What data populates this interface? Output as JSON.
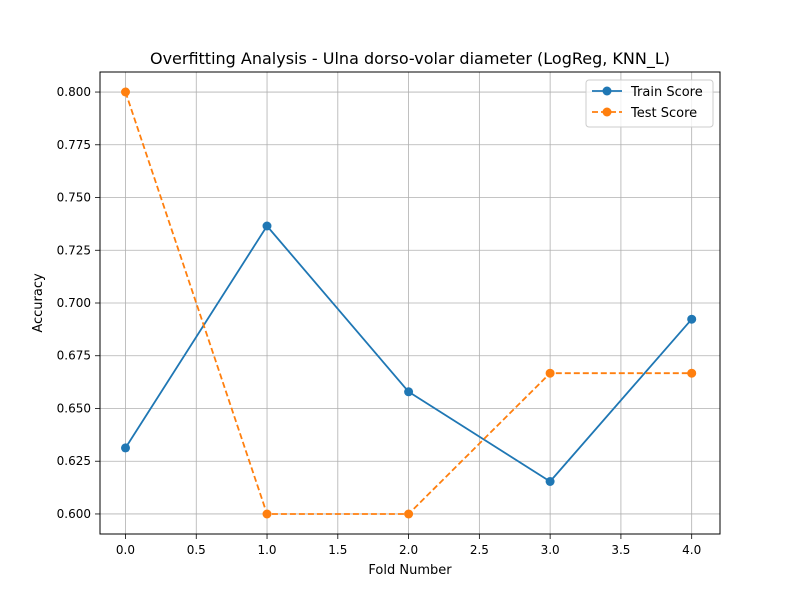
{
  "chart_data": {
    "type": "line",
    "title": "Overfitting Analysis - Ulna dorso-volar diameter (LogReg, KNN_L)",
    "xlabel": "Fold Number",
    "ylabel": "Accuracy",
    "xlim": [
      -0.18,
      4.2
    ],
    "ylim": [
      0.5905,
      0.8095
    ],
    "x_ticks": [
      0,
      0.5,
      1,
      1.5,
      2,
      2.5,
      3,
      3.5,
      4
    ],
    "x_tick_labels": [
      "0.0",
      "0.5",
      "1.0",
      "1.5",
      "2.0",
      "2.5",
      "3.0",
      "3.5",
      "4.0"
    ],
    "y_ticks": [
      0.6,
      0.625,
      0.65,
      0.675,
      0.7,
      0.725,
      0.75,
      0.775,
      0.8
    ],
    "y_tick_labels": [
      "0.600",
      "0.625",
      "0.650",
      "0.675",
      "0.700",
      "0.725",
      "0.750",
      "0.775",
      "0.800"
    ],
    "grid": true,
    "legend_position": "top-right",
    "x": [
      0,
      1,
      2,
      3,
      4
    ],
    "series": [
      {
        "name": "Train Score",
        "values": [
          0.6313,
          0.7365,
          0.6579,
          0.6154,
          0.6923
        ],
        "color": "#1f77b4",
        "linestyle": "solid",
        "marker": "circle"
      },
      {
        "name": "Test Score",
        "values": [
          0.8,
          0.6,
          0.6,
          0.6667,
          0.6667
        ],
        "color": "#ff7f0e",
        "linestyle": "dashed",
        "marker": "circle"
      }
    ]
  }
}
